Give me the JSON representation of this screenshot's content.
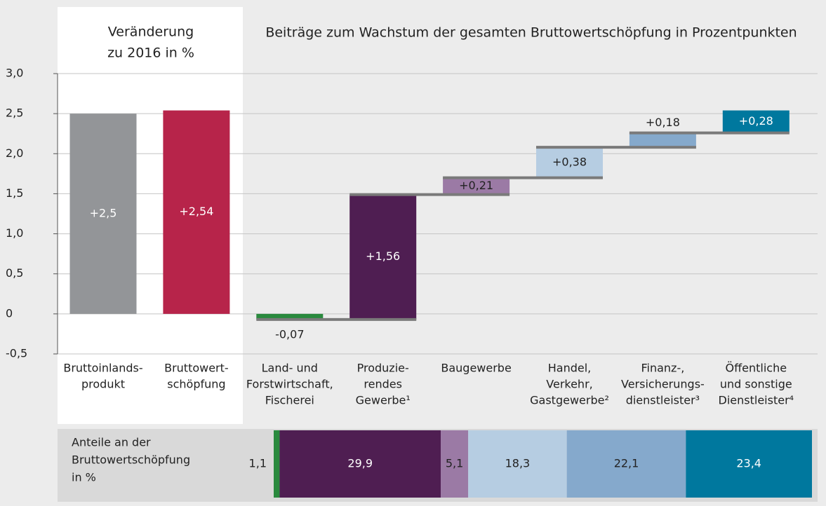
{
  "chart_data": [
    {
      "type": "waterfall",
      "title": "Beiträge zum Wachstum der gesamten Bruttowertschöpfung in Prozentpunkten",
      "subtitle": [
        "Veränderung",
        "zu 2016 in %"
      ],
      "categories": [
        [
          "Bruttoinlands-",
          "produkt"
        ],
        [
          "Bruttowert-",
          "schöpfung"
        ],
        [
          "Land- und",
          "Forstwirtschaft,",
          "Fischerei"
        ],
        [
          "Produzie-",
          "rendes",
          "Gewerbe¹"
        ],
        [
          "Baugewerbe"
        ],
        [
          "Handel,",
          "Verkehr,",
          "Gastgewerbe²"
        ],
        [
          "Finanz-,",
          "Versicherungs-",
          "dienstleister³"
        ],
        [
          "Öffentliche",
          "und sonstige",
          "Dienstleister⁴"
        ]
      ],
      "values": [
        2.5,
        2.54,
        -0.07,
        1.56,
        0.21,
        0.38,
        0.18,
        0.28
      ],
      "value_labels": [
        "+2,5",
        "+2,54",
        "-0,07",
        "+1,56",
        "+0,21",
        "+0,38",
        "+0,18",
        "+0,28"
      ],
      "bar_kinds": [
        "total",
        "total",
        "delta",
        "delta",
        "delta",
        "delta",
        "delta",
        "delta"
      ],
      "colors": [
        "#939598",
        "#b7244a",
        "#2a8a3e",
        "#4f1e52",
        "#9b7aa5",
        "#b6cde2",
        "#85a9cc",
        "#00789e"
      ],
      "label_colors": [
        "#ffffff",
        "#ffffff",
        "#222222",
        "#ffffff",
        "#222222",
        "#222222",
        "#222222",
        "#ffffff"
      ],
      "ylim": [
        -0.5,
        3
      ],
      "yticks": [
        {
          "value": -0.5,
          "label": "-0,5"
        },
        0,
        {
          "value": 0.5,
          "label": "0,5"
        },
        {
          "value": 1,
          "label": "1,0"
        },
        {
          "value": 1.5,
          "label": "1,5"
        },
        {
          "value": 2,
          "label": "2,0"
        },
        {
          "value": 2.5,
          "label": "2,5"
        },
        {
          "value": 3,
          "label": "3,0"
        }
      ],
      "grid": true
    },
    {
      "type": "stacked_share",
      "title": [
        "Anteile an der",
        "Bruttowertschöpfung",
        "in %"
      ],
      "values": [
        1.1,
        29.9,
        5.1,
        18.3,
        22.1,
        23.4
      ],
      "value_labels": [
        "1,1",
        "29,9",
        "5,1",
        "18,3",
        "22,1",
        "23,4"
      ],
      "colors": [
        "#2a8a3e",
        "#4f1e52",
        "#9b7aa5",
        "#b6cde2",
        "#85a9cc",
        "#00789e"
      ],
      "label_colors": [
        "#222222",
        "#ffffff",
        "#222222",
        "#222222",
        "#222222",
        "#ffffff"
      ]
    }
  ]
}
